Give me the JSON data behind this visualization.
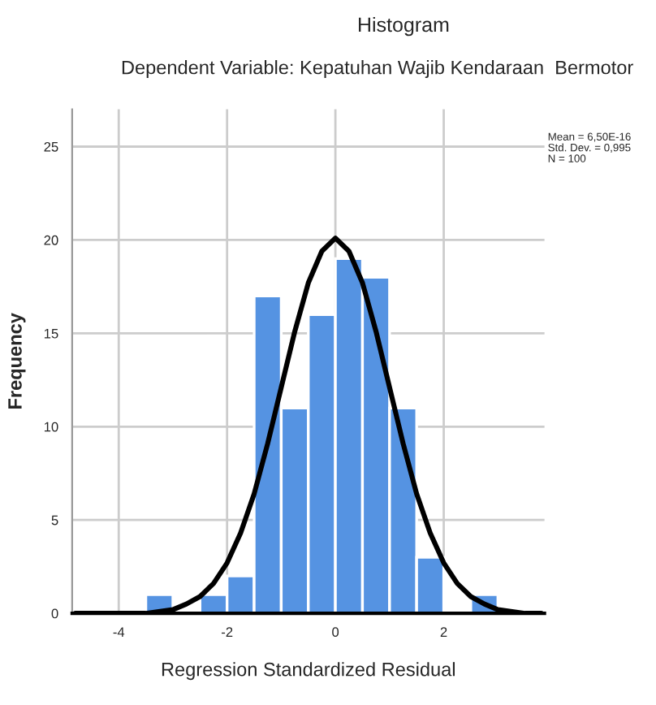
{
  "chart_data": {
    "type": "histogram",
    "title": "Histogram",
    "subtitle": "Dependent Variable: Kepatuhan Wajib Kendaraan  Bermotor",
    "xlabel": "Regression Standardized Residual",
    "ylabel": "Frequency",
    "bins": [
      -3.5,
      -3.0,
      -2.5,
      -2.0,
      -1.5,
      -1.0,
      -0.5,
      0.0,
      0.5,
      1.0,
      1.5,
      2.0,
      2.5,
      3.0
    ],
    "values": [
      1,
      0,
      1,
      2,
      17,
      11,
      16,
      19,
      18,
      11,
      3,
      0,
      1
    ],
    "color": "#5593e2",
    "series": [
      {
        "type": "line",
        "color": "#000000",
        "x": [
          -4.8,
          -4,
          -3.5,
          -3,
          -2.75,
          -2.5,
          -2.25,
          -2,
          -1.75,
          -1.5,
          -1.25,
          -1,
          -0.75,
          -0.5,
          -0.25,
          0,
          0.25,
          0.5,
          0.75,
          1,
          1.25,
          1.5,
          1.75,
          2,
          2.25,
          2.5,
          2.75,
          3,
          3.5,
          3.8
        ],
        "values": [
          0,
          0,
          0,
          0.2,
          0.5,
          0.9,
          1.6,
          2.7,
          4.3,
          6.4,
          9.1,
          12.1,
          15.1,
          17.7,
          19.4,
          20.1,
          19.4,
          17.7,
          15.1,
          12.1,
          9.1,
          6.4,
          4.3,
          2.7,
          1.6,
          0.9,
          0.5,
          0.2,
          0,
          0
        ]
      }
    ],
    "xlim": [
      -4.86,
      3.86
    ],
    "xticks": [
      -4,
      -2,
      0,
      2
    ],
    "ylim": [
      0,
      27
    ],
    "yticks": [
      0,
      5,
      10,
      15,
      20,
      25
    ],
    "grid": true,
    "annotations": [
      "Mean = 6,50E-16\nStd. Dev. = 0,995\nN = 100"
    ]
  }
}
